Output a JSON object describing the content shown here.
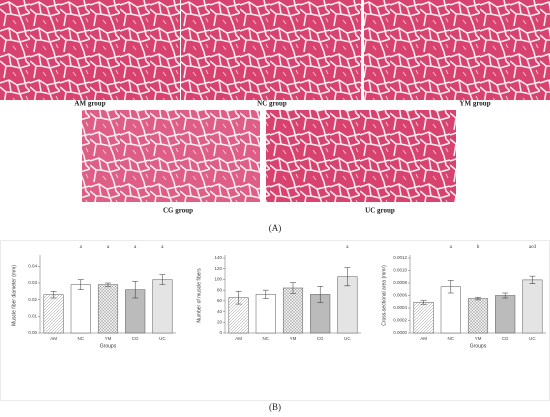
{
  "images": [
    {
      "label": "AM group"
    },
    {
      "label": "NC group"
    },
    {
      "label": "YM group"
    },
    {
      "label": "CG group"
    },
    {
      "label": "UC group"
    }
  ],
  "panel_labels": [
    "(A)",
    "(B)"
  ],
  "chart_data": [
    {
      "type": "bar",
      "y_label": "Muscle fiber diameter (mm)",
      "x_label": "Groups",
      "categories": [
        "AM",
        "NC",
        "YM",
        "CG",
        "UC"
      ],
      "values": [
        0.023,
        0.029,
        0.029,
        0.026,
        0.032
      ],
      "errors": [
        0.002,
        0.003,
        0.001,
        0.005,
        0.003
      ],
      "annotations": [
        null,
        "a",
        "a",
        "a",
        "a"
      ],
      "ylim": [
        0,
        0.045
      ],
      "yticks": [
        {
          "value": 0,
          "label": "0.00"
        },
        0.01,
        0.02,
        0.03,
        0.04
      ]
    },
    {
      "type": "bar",
      "y_label": "Number of muscle fibers",
      "categories": [
        "AM",
        "NC",
        "YM",
        "CG",
        "UC"
      ],
      "values": [
        66,
        72,
        84,
        72,
        105
      ],
      "errors": [
        12,
        8,
        10,
        15,
        17
      ],
      "annotations": [
        null,
        null,
        null,
        null,
        "a"
      ],
      "ylim": [
        0,
        140
      ],
      "yticks": [
        0,
        20,
        40,
        60,
        80,
        100,
        120,
        140
      ]
    },
    {
      "type": "bar",
      "y_label": "Cross-sectional area (mm²)",
      "x_label": "Groups",
      "categories": [
        "AM",
        "NC",
        "YM",
        "CG",
        "UC"
      ],
      "values": [
        0.00049,
        0.00074,
        0.00055,
        0.0006,
        0.00085
      ],
      "errors": [
        3e-05,
        0.0001,
        2e-05,
        4e-05,
        6e-05
      ],
      "annotations": [
        null,
        "a",
        "b",
        null,
        "acd"
      ],
      "ylim": [
        0,
        0.0012
      ],
      "yticks": [
        {
          "value": 0,
          "label": "0.0000"
        },
        0.0002,
        0.0004,
        0.0006,
        0.0008,
        {
          "value": 0.001,
          "label": "0.0010"
        },
        0.0012
      ]
    }
  ]
}
